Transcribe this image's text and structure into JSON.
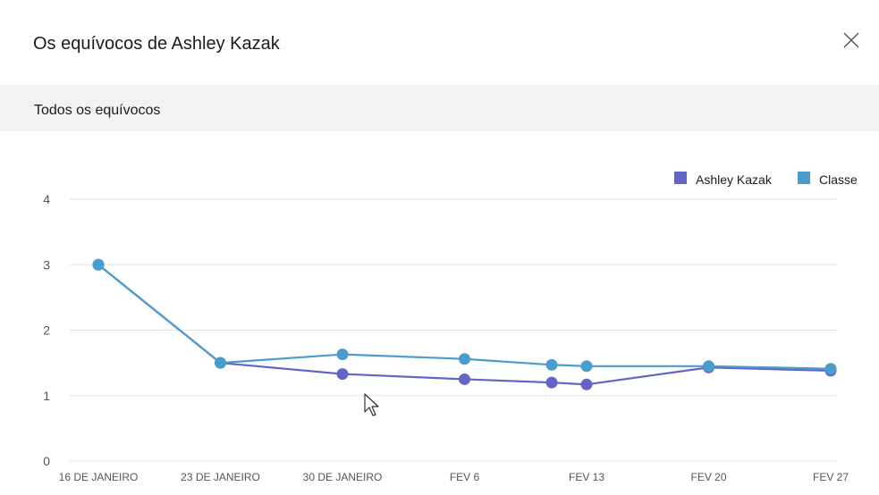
{
  "dialog": {
    "title": "Os equívocos de Ashley Kazak",
    "close_icon": "close-icon"
  },
  "section": {
    "title": "Todos os equívocos"
  },
  "chart_data": {
    "type": "line",
    "categories": [
      "16 DE JANEIRO",
      "23 DE JANEIRO",
      "30 DE JANEIRO",
      "FEV 6",
      "FEV 13",
      "FEV 20",
      "FEV 27"
    ],
    "x": [
      "2021-01-16",
      "2021-01-23",
      "2021-01-30",
      "2021-02-06",
      "2021-02-11",
      "2021-02-13",
      "2021-02-20",
      "2021-02-27"
    ],
    "series": [
      {
        "name": "Ashley Kazak",
        "color": "#6364c8",
        "values": [
          3.0,
          1.5,
          1.33,
          1.25,
          1.2,
          1.17,
          1.43,
          1.38
        ]
      },
      {
        "name": "Classe",
        "color": "#4a9ccd",
        "values": [
          3.0,
          1.5,
          1.63,
          1.56,
          1.47,
          1.45,
          1.45,
          1.41
        ]
      }
    ],
    "ylim": [
      0,
      4
    ],
    "yticks": [
      "0",
      "1",
      "2",
      "3",
      "4"
    ],
    "grid": true,
    "legend": "top-right"
  }
}
